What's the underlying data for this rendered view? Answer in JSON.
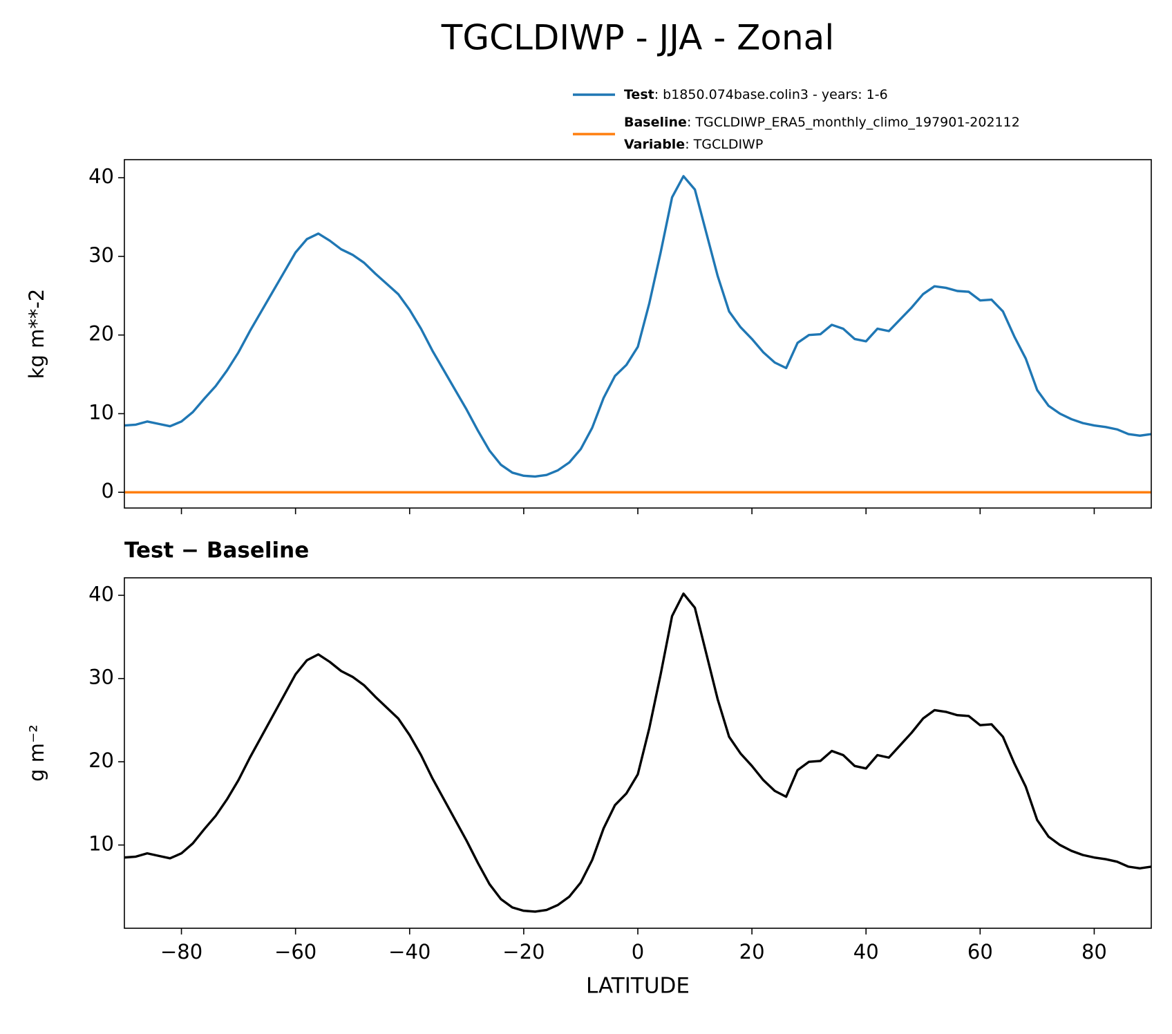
{
  "title": "TGCLDIWP - JJA - Zonal",
  "chart_data": [
    {
      "type": "line",
      "ylabel": "kg m**-2",
      "x": [
        -90,
        -88,
        -86,
        -84,
        -82,
        -80,
        -78,
        -76,
        -74,
        -72,
        -70,
        -68,
        -66,
        -64,
        -62,
        -60,
        -58,
        -56,
        -54,
        -52,
        -50,
        -48,
        -46,
        -44,
        -42,
        -40,
        -38,
        -36,
        -34,
        -32,
        -30,
        -28,
        -26,
        -24,
        -22,
        -20,
        -18,
        -16,
        -14,
        -12,
        -10,
        -8,
        -6,
        -4,
        -2,
        0,
        2,
        4,
        6,
        8,
        10,
        12,
        14,
        16,
        18,
        20,
        22,
        24,
        26,
        28,
        30,
        32,
        34,
        36,
        38,
        40,
        42,
        44,
        46,
        48,
        50,
        52,
        54,
        56,
        58,
        60,
        62,
        64,
        66,
        68,
        70,
        72,
        74,
        76,
        78,
        80,
        82,
        84,
        86,
        88,
        90
      ],
      "series": [
        {
          "name": "Test",
          "legend_detail": ": b1850.074base.colin3 - years: 1-6",
          "color": "#1f77b4",
          "values": [
            8.5,
            8.6,
            9.0,
            8.7,
            8.4,
            9.0,
            10.2,
            11.9,
            13.5,
            15.5,
            17.8,
            20.5,
            23.0,
            25.5,
            28.0,
            30.5,
            32.2,
            32.9,
            32.0,
            30.9,
            30.2,
            29.2,
            27.8,
            26.5,
            25.2,
            23.2,
            20.8,
            18.0,
            15.5,
            13.0,
            10.5,
            7.8,
            5.3,
            3.5,
            2.5,
            2.1,
            2.0,
            2.2,
            2.8,
            3.8,
            5.5,
            8.2,
            12.0,
            14.8,
            16.2,
            18.5,
            24.0,
            30.5,
            37.5,
            40.2,
            38.5,
            33.0,
            27.5,
            23.0,
            21.0,
            19.5,
            17.8,
            16.5,
            15.8,
            19.0,
            20.0,
            20.1,
            21.3,
            20.8,
            19.5,
            19.2,
            20.8,
            20.5,
            22.0,
            23.5,
            25.2,
            26.2,
            26.0,
            25.6,
            25.5,
            24.4,
            24.5,
            23.0,
            19.8,
            17.0,
            13.0,
            11.0,
            10.0,
            9.3,
            8.8,
            8.5,
            8.3,
            8.0,
            7.4,
            7.2,
            7.4
          ]
        },
        {
          "name": "Baseline",
          "legend_detail": ": TGCLDIWP_ERA5_monthly_climo_197901-202112",
          "legend_note": {
            "key": "Variable",
            "text": ": TGCLDIWP"
          },
          "color": "#ff7f0e",
          "values": [
            0,
            0,
            0,
            0,
            0,
            0,
            0,
            0,
            0,
            0,
            0,
            0,
            0,
            0,
            0,
            0,
            0,
            0,
            0,
            0,
            0,
            0,
            0,
            0,
            0,
            0,
            0,
            0,
            0,
            0,
            0,
            0,
            0,
            0,
            0,
            0,
            0,
            0,
            0,
            0,
            0,
            0,
            0,
            0,
            0,
            0,
            0,
            0,
            0,
            0,
            0,
            0,
            0,
            0,
            0,
            0,
            0,
            0,
            0,
            0,
            0,
            0,
            0,
            0,
            0,
            0,
            0,
            0,
            0,
            0,
            0,
            0,
            0,
            0,
            0,
            0,
            0,
            0,
            0,
            0,
            0,
            0,
            0,
            0,
            0,
            0,
            0,
            0,
            0,
            0,
            0
          ]
        }
      ],
      "xlim": [
        -90,
        90
      ],
      "xticks": [
        -80,
        -60,
        -40,
        -20,
        0,
        20,
        40,
        60,
        80
      ],
      "show_xtick_labels": false,
      "ylim": [
        -2.0,
        42.3
      ],
      "yticks": [
        0,
        10,
        20,
        30,
        40
      ]
    },
    {
      "type": "line",
      "title": "Test − Baseline",
      "xlabel": "LATITUDE",
      "ylabel": "g m⁻²",
      "x": [
        -90,
        -88,
        -86,
        -84,
        -82,
        -80,
        -78,
        -76,
        -74,
        -72,
        -70,
        -68,
        -66,
        -64,
        -62,
        -60,
        -58,
        -56,
        -54,
        -52,
        -50,
        -48,
        -46,
        -44,
        -42,
        -40,
        -38,
        -36,
        -34,
        -32,
        -30,
        -28,
        -26,
        -24,
        -22,
        -20,
        -18,
        -16,
        -14,
        -12,
        -10,
        -8,
        -6,
        -4,
        -2,
        0,
        2,
        4,
        6,
        8,
        10,
        12,
        14,
        16,
        18,
        20,
        22,
        24,
        26,
        28,
        30,
        32,
        34,
        36,
        38,
        40,
        42,
        44,
        46,
        48,
        50,
        52,
        54,
        56,
        58,
        60,
        62,
        64,
        66,
        68,
        70,
        72,
        74,
        76,
        78,
        80,
        82,
        84,
        86,
        88,
        90
      ],
      "series": [
        {
          "color": "#000000",
          "values": [
            8.5,
            8.6,
            9.0,
            8.7,
            8.4,
            9.0,
            10.2,
            11.9,
            13.5,
            15.5,
            17.8,
            20.5,
            23.0,
            25.5,
            28.0,
            30.5,
            32.2,
            32.9,
            32.0,
            30.9,
            30.2,
            29.2,
            27.8,
            26.5,
            25.2,
            23.2,
            20.8,
            18.0,
            15.5,
            13.0,
            10.5,
            7.8,
            5.3,
            3.5,
            2.5,
            2.1,
            2.0,
            2.2,
            2.8,
            3.8,
            5.5,
            8.2,
            12.0,
            14.8,
            16.2,
            18.5,
            24.0,
            30.5,
            37.5,
            40.2,
            38.5,
            33.0,
            27.5,
            23.0,
            21.0,
            19.5,
            17.8,
            16.5,
            15.8,
            19.0,
            20.0,
            20.1,
            21.3,
            20.8,
            19.5,
            19.2,
            20.8,
            20.5,
            22.0,
            23.5,
            25.2,
            26.2,
            26.0,
            25.6,
            25.5,
            24.4,
            24.5,
            23.0,
            19.8,
            17.0,
            13.0,
            11.0,
            10.0,
            9.3,
            8.8,
            8.5,
            8.3,
            8.0,
            7.4,
            7.2,
            7.4
          ]
        }
      ],
      "xlim": [
        -90,
        90
      ],
      "xticks": [
        {
          "value": -80,
          "label": "−80"
        },
        {
          "value": -60,
          "label": "−60"
        },
        {
          "value": -40,
          "label": "−40"
        },
        {
          "value": -20,
          "label": "−20"
        },
        0,
        20,
        40,
        60,
        80
      ],
      "show_xtick_labels": true,
      "ylim": [
        0.0,
        42.1
      ],
      "yticks": [
        10,
        20,
        30,
        40
      ]
    }
  ]
}
